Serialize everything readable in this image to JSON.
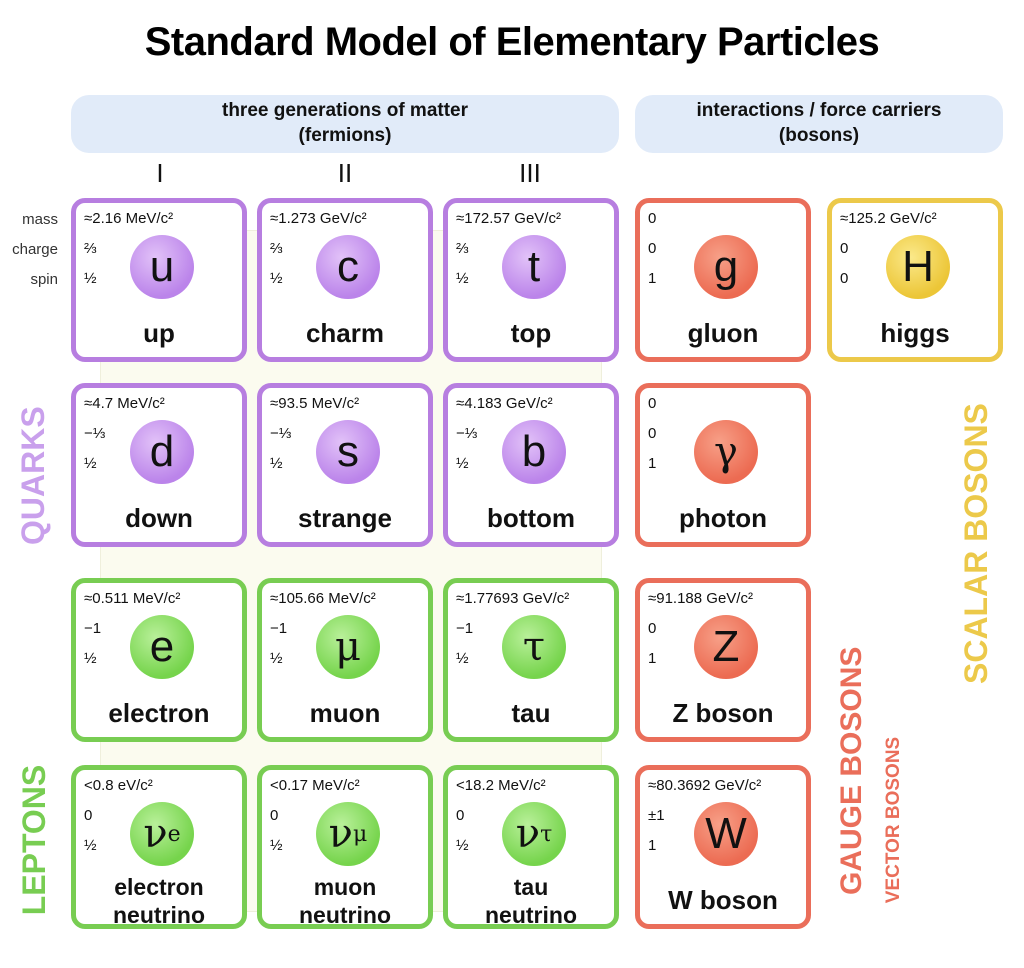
{
  "title": "Standard Model of Elementary Particles",
  "headers": {
    "fermions": [
      "three generations of matter",
      "(fermions)"
    ],
    "bosons": [
      "interactions / force carriers",
      "(bosons)"
    ]
  },
  "generations": [
    "I",
    "II",
    "III"
  ],
  "row_labels": [
    "mass",
    "charge",
    "spin"
  ],
  "side_labels": {
    "quarks": "QUARKS",
    "leptons": "LEPTONS",
    "gauge": "GAUGE BOSONS",
    "vector": "VECTOR BOSONS",
    "scalar": "SCALAR BOSONS"
  },
  "colors": {
    "quark": "#b77ee0",
    "lepton": "#78cd52",
    "gauge": "#ea6e5a",
    "scalar": "#ecc94a",
    "header_bg": "#e1ebf9"
  },
  "particles": {
    "up": {
      "mass": "≈2.16 MeV/c²",
      "charge": "⅔",
      "spin": "½",
      "symbol": "u",
      "name": "up"
    },
    "charm": {
      "mass": "≈1.273 GeV/c²",
      "charge": "⅔",
      "spin": "½",
      "symbol": "c",
      "name": "charm"
    },
    "top": {
      "mass": "≈172.57 GeV/c²",
      "charge": "⅔",
      "spin": "½",
      "symbol": "t",
      "name": "top"
    },
    "gluon": {
      "mass": "0",
      "charge": "0",
      "spin": "1",
      "symbol": "g",
      "name": "gluon"
    },
    "higgs": {
      "mass": "≈125.2 GeV/c²",
      "charge": "0",
      "spin": "0",
      "symbol": "H",
      "name": "higgs"
    },
    "down": {
      "mass": "≈4.7 MeV/c²",
      "charge": "−⅓",
      "spin": "½",
      "symbol": "d",
      "name": "down"
    },
    "strange": {
      "mass": "≈93.5 MeV/c²",
      "charge": "−⅓",
      "spin": "½",
      "symbol": "s",
      "name": "strange"
    },
    "bottom": {
      "mass": "≈4.183 GeV/c²",
      "charge": "−⅓",
      "spin": "½",
      "symbol": "b",
      "name": "bottom"
    },
    "photon": {
      "mass": "0",
      "charge": "0",
      "spin": "1",
      "symbol": "γ",
      "name": "photon"
    },
    "electron": {
      "mass": "≈0.511 MeV/c²",
      "charge": "−1",
      "spin": "½",
      "symbol": "e",
      "name": "electron"
    },
    "muon": {
      "mass": "≈105.66 MeV/c²",
      "charge": "−1",
      "spin": "½",
      "symbol": "μ",
      "name": "muon"
    },
    "tau": {
      "mass": "≈1.77693 GeV/c²",
      "charge": "−1",
      "spin": "½",
      "symbol": "τ",
      "name": "tau"
    },
    "zboson": {
      "mass": "≈91.188 GeV/c²",
      "charge": "0",
      "spin": "1",
      "symbol": "Z",
      "name": "Z boson"
    },
    "nue": {
      "mass": "<0.8 eV/c²",
      "charge": "0",
      "spin": "½",
      "symbol": "ν",
      "sub": "e",
      "name": [
        "electron",
        "neutrino"
      ]
    },
    "numu": {
      "mass": "<0.17 MeV/c²",
      "charge": "0",
      "spin": "½",
      "symbol": "ν",
      "sub": "μ",
      "name": [
        "muon",
        "neutrino"
      ]
    },
    "nutau": {
      "mass": "<18.2 MeV/c²",
      "charge": "0",
      "spin": "½",
      "symbol": "ν",
      "sub": "τ",
      "name": [
        "tau",
        "neutrino"
      ]
    },
    "wboson": {
      "mass": "≈80.3692 GeV/c²",
      "charge": "±1",
      "spin": "1",
      "symbol": "W",
      "name": "W boson"
    }
  }
}
